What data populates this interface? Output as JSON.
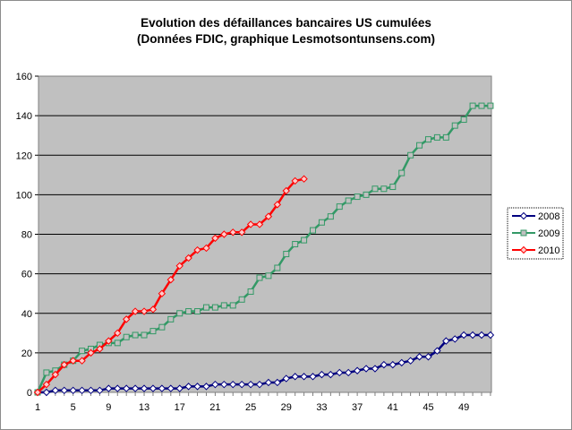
{
  "chart_data": {
    "type": "line",
    "title": "Evolution des défaillances bancaires US cumulées",
    "subtitle": "(Données FDIC, graphique Lesmotsontunsens.com)",
    "xlabel": "",
    "ylabel": "",
    "ylim": [
      0,
      160
    ],
    "yticks": [
      0,
      20,
      40,
      60,
      80,
      100,
      120,
      140,
      160
    ],
    "xlim": [
      1,
      52
    ],
    "xtick_labels": [
      "1",
      "5",
      "9",
      "13",
      "17",
      "21",
      "25",
      "29",
      "33",
      "37",
      "41",
      "45",
      "49"
    ],
    "grid": true,
    "legend_position": "right",
    "plot_background": "#c0c0c0",
    "series": [
      {
        "name": "2008",
        "color": "#000080",
        "marker": "diamond",
        "x": [
          1,
          2,
          3,
          4,
          5,
          6,
          7,
          8,
          9,
          10,
          11,
          12,
          13,
          14,
          15,
          16,
          17,
          18,
          19,
          20,
          21,
          22,
          23,
          24,
          25,
          26,
          27,
          28,
          29,
          30,
          31,
          32,
          33,
          34,
          35,
          36,
          37,
          38,
          39,
          40,
          41,
          42,
          43,
          44,
          45,
          46,
          47,
          48,
          49,
          50,
          51,
          52
        ],
        "values": [
          0,
          0,
          1,
          1,
          1,
          1,
          1,
          1,
          2,
          2,
          2,
          2,
          2,
          2,
          2,
          2,
          2,
          3,
          3,
          3,
          4,
          4,
          4,
          4,
          4,
          4,
          5,
          5,
          7,
          8,
          8,
          8,
          9,
          9,
          10,
          10,
          11,
          12,
          12,
          14,
          14,
          15,
          16,
          18,
          18,
          21,
          26,
          27,
          29,
          29,
          29,
          29
        ]
      },
      {
        "name": "2009",
        "color": "#339966",
        "marker": "square",
        "x": [
          1,
          2,
          3,
          4,
          5,
          6,
          7,
          8,
          9,
          10,
          11,
          12,
          13,
          14,
          15,
          16,
          17,
          18,
          19,
          20,
          21,
          22,
          23,
          24,
          25,
          26,
          27,
          28,
          29,
          30,
          31,
          32,
          33,
          34,
          35,
          36,
          37,
          38,
          39,
          40,
          41,
          42,
          43,
          44,
          45,
          46,
          47,
          48,
          49,
          50,
          51,
          52
        ],
        "values": [
          0,
          10,
          11,
          14,
          16,
          21,
          22,
          24,
          25,
          25,
          28,
          29,
          29,
          31,
          33,
          37,
          40,
          41,
          41,
          43,
          43,
          44,
          44,
          47,
          51,
          58,
          59,
          63,
          70,
          75,
          77,
          82,
          86,
          89,
          94,
          97,
          99,
          100,
          103,
          103,
          104,
          111,
          120,
          125,
          128,
          129,
          129,
          135,
          138,
          145,
          145,
          145
        ]
      },
      {
        "name": "2010",
        "color": "#ff0000",
        "marker": "diamond",
        "x": [
          1,
          2,
          3,
          4,
          5,
          6,
          7,
          8,
          9,
          10,
          11,
          12,
          13,
          14,
          15,
          16,
          17,
          18,
          19,
          20,
          21,
          22,
          23,
          24,
          25,
          26,
          27,
          28,
          29,
          30,
          31
        ],
        "values": [
          0,
          4,
          9,
          14,
          16,
          16,
          20,
          22,
          26,
          30,
          37,
          41,
          41,
          42,
          50,
          57,
          64,
          68,
          72,
          73,
          78,
          80,
          81,
          81,
          85,
          85,
          89,
          95,
          102,
          107,
          108
        ]
      }
    ]
  }
}
